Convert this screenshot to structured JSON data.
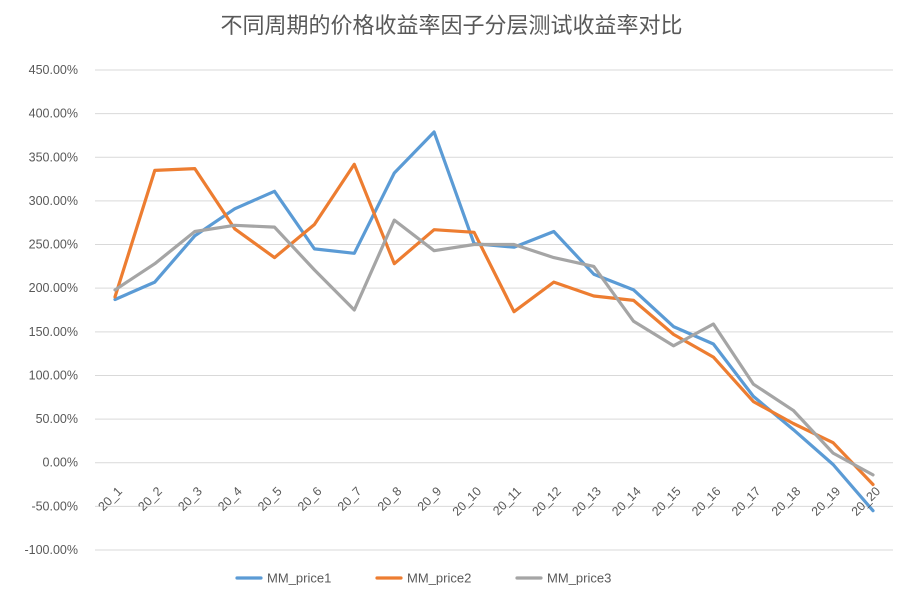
{
  "chart_data": {
    "type": "line",
    "title": "不同周期的价格收益率因子分层测试收益率对比",
    "categories": [
      "20_1",
      "20_2",
      "20_3",
      "20_4",
      "20_5",
      "20_6",
      "20_7",
      "20_8",
      "20_9",
      "20_10",
      "20_11",
      "20_12",
      "20_13",
      "20_14",
      "20_15",
      "20_16",
      "20_17",
      "20_18",
      "20_19",
      "20_20"
    ],
    "y_tick_labels": [
      "450.00%",
      "400.00%",
      "350.00%",
      "300.00%",
      "250.00%",
      "200.00%",
      "150.00%",
      "100.00%",
      "50.00%",
      "0.00%",
      "-50.00%",
      "-100.00%"
    ],
    "ylim": [
      -100,
      450
    ],
    "y_unit": "%",
    "grid": true,
    "legend_position": "bottom",
    "series": [
      {
        "name": "MM_price1",
        "color": "#5B9BD5",
        "values": [
          187,
          207,
          260,
          291,
          311,
          245,
          240,
          332,
          379,
          251,
          247,
          265,
          216,
          198,
          156,
          136,
          76,
          38,
          -2,
          -55
        ]
      },
      {
        "name": "MM_price2",
        "color": "#ED7D31",
        "values": [
          190,
          335,
          337,
          268,
          235,
          273,
          342,
          228,
          267,
          264,
          173,
          207,
          191,
          186,
          147,
          121,
          70,
          45,
          23,
          -25
        ]
      },
      {
        "name": "MM_price3",
        "color": "#A5A5A5",
        "values": [
          198,
          228,
          265,
          272,
          270,
          221,
          175,
          278,
          243,
          250,
          250,
          235,
          225,
          162,
          134,
          159,
          90,
          60,
          11,
          -14
        ]
      }
    ]
  }
}
